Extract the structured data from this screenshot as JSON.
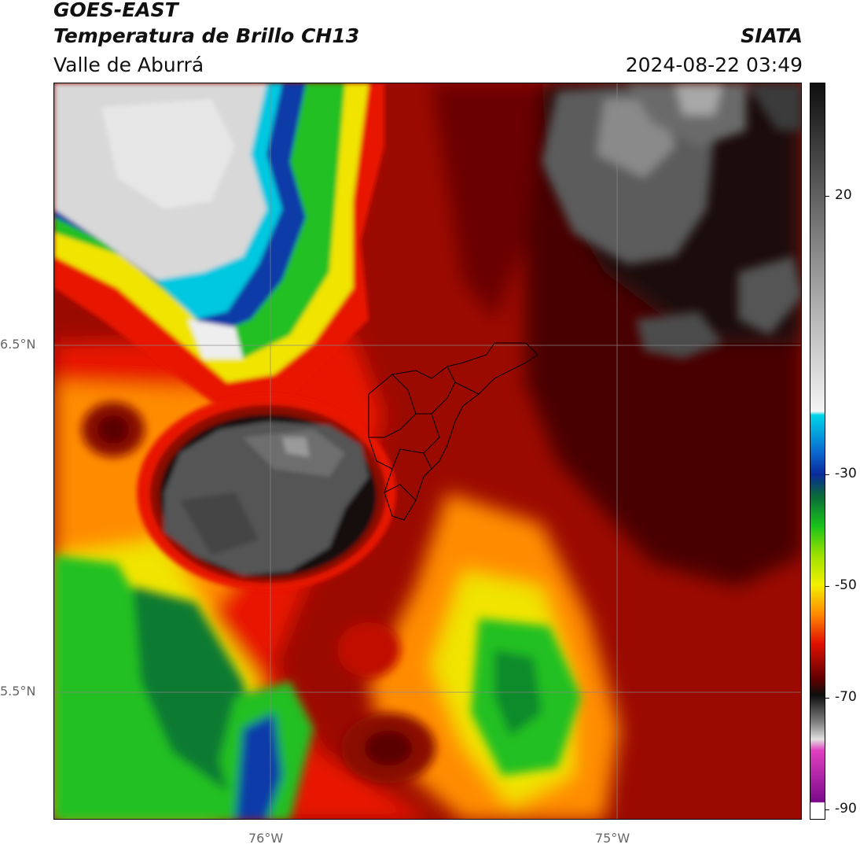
{
  "header": {
    "satellite": "GOES-EAST",
    "product": "Temperatura de Brillo CH13",
    "region": "Valle de Aburrá",
    "agency": "SIATA",
    "datetime": "2024-08-22 03:49"
  },
  "axes": {
    "lat_labels": [
      "6.5°N",
      "5.5°N"
    ],
    "lon_labels": [
      "76°W",
      "75°W"
    ]
  },
  "colorbar": {
    "tick_labels": [
      "20",
      "-30",
      "-50",
      "-70",
      "-90"
    ],
    "colors": {
      "warmest": "#0e0e0e",
      "gray": "#7a7a7a",
      "light": "#ededed",
      "cyan": "#00d4e8",
      "blue": "#0a2a9a",
      "green": "#18c21a",
      "yellow": "#f2f000",
      "orange": "#ff8a00",
      "red": "#e01000",
      "darkred": "#5a0000",
      "pink": "#e040c0",
      "purple": "#7a0a8a"
    }
  },
  "palette": {
    "white_cloud": "#d8d8d8",
    "cloud_gray": "#5a5a5a",
    "cyan": "#00c8e0",
    "blue": "#0a3aa8",
    "green": "#20c020",
    "lime": "#9ce000",
    "yellow": "#f0e400",
    "orange": "#ff8c00",
    "red": "#e81400",
    "dark_red": "#8a0800",
    "darker_red": "#4a0202",
    "black": "#141010",
    "border_line": "#000000"
  }
}
